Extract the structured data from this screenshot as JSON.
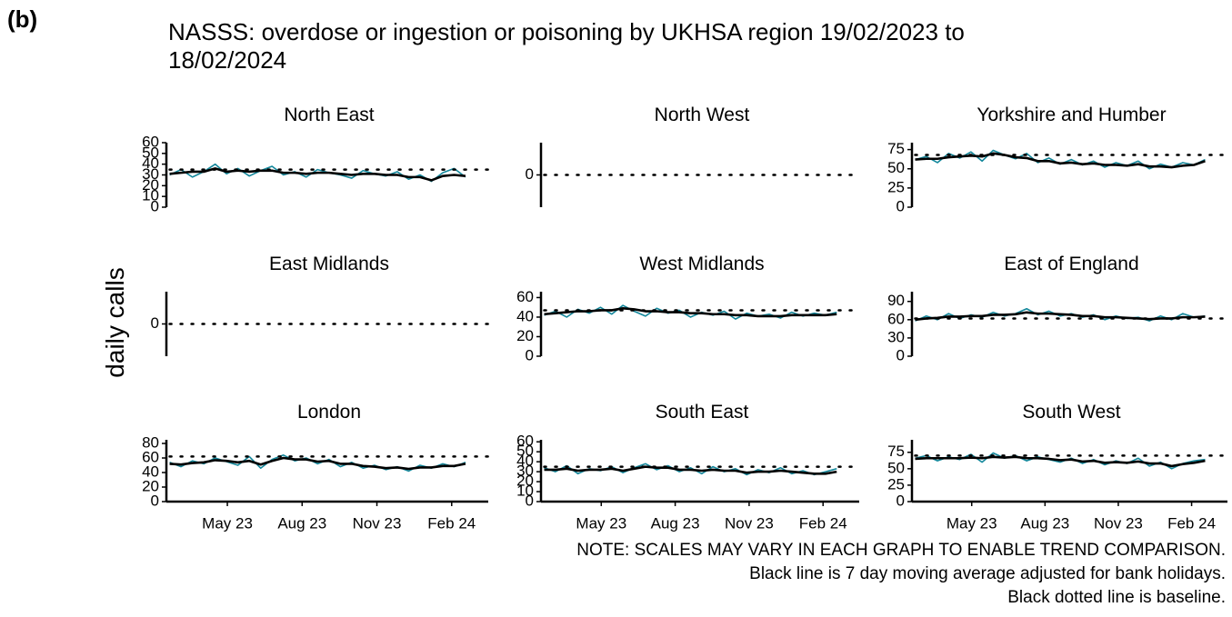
{
  "label": "(b)",
  "title": [
    "NASSS: overdose or ingestion or poisoning by UKHSA region 19/02/2023 to",
    "18/02/2024"
  ],
  "ylabel": "daily calls",
  "notes": [
    "NOTE: SCALES MAY VARY IN EACH GRAPH TO ENABLE TREND COMPARISON.",
    "Black line is 7 day moving average adjusted for bank holidays.",
    "Black dotted line is baseline."
  ],
  "chart_data": [
    {
      "type": "line",
      "title": "North East",
      "x": [
        0,
        14,
        28,
        42,
        56,
        70,
        84,
        98,
        112,
        126,
        140,
        154,
        168,
        182,
        196,
        210,
        224,
        238,
        252,
        266,
        280,
        294,
        308,
        322,
        336,
        350,
        364
      ],
      "xlim": [
        -4,
        392
      ],
      "ylim": [
        0,
        60
      ],
      "yticks": [
        0,
        10,
        20,
        30,
        40,
        50,
        60
      ],
      "baseline": 35,
      "series": [
        {
          "color": "#13879b",
          "values": [
            30,
            35,
            28,
            33,
            40,
            31,
            36,
            29,
            34,
            38,
            30,
            33,
            28,
            35,
            32,
            30,
            27,
            34,
            31,
            29,
            33,
            26,
            30,
            24,
            32,
            36,
            28
          ]
        },
        {
          "color": "#000000",
          "values": [
            31,
            32,
            33,
            33,
            36,
            33,
            34,
            33,
            34,
            34,
            32,
            32,
            31,
            32,
            32,
            31,
            30,
            31,
            31,
            30,
            30,
            28,
            28,
            25,
            29,
            30,
            29
          ]
        }
      ]
    },
    {
      "type": "line",
      "title": "North West",
      "xlim": [
        -4,
        392
      ],
      "ylim": [
        -1,
        1
      ],
      "yticks": [
        0
      ],
      "baseline": 0,
      "series": []
    },
    {
      "type": "line",
      "title": "Yorkshire and Humber",
      "x": [
        0,
        14,
        28,
        42,
        56,
        70,
        84,
        98,
        112,
        126,
        140,
        154,
        168,
        182,
        196,
        210,
        224,
        238,
        252,
        266,
        280,
        294,
        308,
        322,
        336,
        350,
        364
      ],
      "xlim": [
        -4,
        392
      ],
      "ylim": [
        0,
        84
      ],
      "yticks": [
        0,
        25,
        50,
        75
      ],
      "baseline": 68,
      "series": [
        {
          "color": "#13879b",
          "values": [
            62,
            66,
            58,
            70,
            64,
            72,
            60,
            74,
            68,
            63,
            70,
            58,
            64,
            56,
            62,
            55,
            60,
            52,
            58,
            54,
            60,
            50,
            56,
            52,
            58,
            55,
            62
          ]
        },
        {
          "color": "#000000",
          "values": [
            62,
            63,
            63,
            65,
            66,
            67,
            66,
            70,
            68,
            65,
            64,
            60,
            60,
            57,
            58,
            56,
            57,
            55,
            55,
            54,
            56,
            53,
            53,
            52,
            54,
            55,
            60
          ]
        }
      ]
    },
    {
      "type": "line",
      "title": "East Midlands",
      "xlim": [
        -4,
        392
      ],
      "ylim": [
        -1,
        1
      ],
      "yticks": [
        0
      ],
      "baseline": 0,
      "series": []
    },
    {
      "type": "line",
      "title": "West Midlands",
      "x": [
        0,
        14,
        28,
        42,
        56,
        70,
        84,
        98,
        112,
        126,
        140,
        154,
        168,
        182,
        196,
        210,
        224,
        238,
        252,
        266,
        280,
        294,
        308,
        322,
        336,
        350,
        364
      ],
      "xlim": [
        -4,
        392
      ],
      "ylim": [
        0,
        66
      ],
      "yticks": [
        0,
        20,
        40,
        60
      ],
      "baseline": 47,
      "series": [
        {
          "color": "#13879b",
          "values": [
            42,
            46,
            40,
            48,
            44,
            50,
            43,
            52,
            46,
            41,
            49,
            44,
            47,
            40,
            45,
            42,
            46,
            38,
            44,
            41,
            43,
            39,
            45,
            41,
            44,
            42,
            45
          ]
        },
        {
          "color": "#000000",
          "values": [
            43,
            44,
            45,
            46,
            46,
            47,
            47,
            49,
            48,
            46,
            46,
            45,
            45,
            44,
            44,
            43,
            43,
            42,
            42,
            41,
            41,
            41,
            42,
            42,
            42,
            42,
            43
          ]
        }
      ]
    },
    {
      "type": "line",
      "title": "East of England",
      "x": [
        0,
        14,
        28,
        42,
        56,
        70,
        84,
        98,
        112,
        126,
        140,
        154,
        168,
        182,
        196,
        210,
        224,
        238,
        252,
        266,
        280,
        294,
        308,
        322,
        336,
        350,
        364
      ],
      "xlim": [
        -4,
        392
      ],
      "ylim": [
        0,
        106
      ],
      "yticks": [
        0,
        30,
        60,
        90
      ],
      "baseline": 62,
      "series": [
        {
          "color": "#13879b",
          "values": [
            58,
            66,
            60,
            70,
            62,
            68,
            64,
            72,
            66,
            70,
            78,
            68,
            74,
            66,
            70,
            64,
            68,
            60,
            66,
            62,
            64,
            58,
            66,
            60,
            70,
            64,
            66
          ]
        },
        {
          "color": "#000000",
          "values": [
            60,
            62,
            63,
            65,
            65,
            66,
            66,
            68,
            68,
            69,
            72,
            70,
            70,
            69,
            68,
            66,
            66,
            64,
            64,
            63,
            62,
            61,
            62,
            62,
            64,
            64,
            65
          ]
        }
      ]
    },
    {
      "type": "line",
      "title": "London",
      "x": [
        0,
        14,
        28,
        42,
        56,
        70,
        84,
        98,
        112,
        126,
        140,
        154,
        168,
        182,
        196,
        210,
        224,
        238,
        252,
        266,
        280,
        294,
        308,
        322,
        336,
        350,
        364
      ],
      "xlim": [
        -4,
        392
      ],
      "ylim": [
        0,
        85
      ],
      "yticks": [
        0,
        20,
        40,
        60,
        80
      ],
      "baseline": 62,
      "xticks": [
        {
          "value": 71,
          "label": "May 23"
        },
        {
          "value": 163,
          "label": "Aug 23"
        },
        {
          "value": 255,
          "label": "Nov 23"
        },
        {
          "value": 347,
          "label": "Feb 24"
        }
      ],
      "series": [
        {
          "color": "#13879b",
          "values": [
            54,
            48,
            56,
            52,
            60,
            55,
            50,
            62,
            46,
            58,
            64,
            56,
            60,
            52,
            58,
            48,
            54,
            46,
            50,
            44,
            48,
            42,
            50,
            46,
            52,
            48,
            54
          ]
        },
        {
          "color": "#000000",
          "values": [
            52,
            51,
            53,
            54,
            57,
            56,
            54,
            56,
            51,
            56,
            60,
            58,
            58,
            55,
            56,
            52,
            52,
            49,
            48,
            46,
            47,
            45,
            47,
            47,
            49,
            49,
            52
          ]
        }
      ]
    },
    {
      "type": "line",
      "title": "South East",
      "x": [
        0,
        14,
        28,
        42,
        56,
        70,
        84,
        98,
        112,
        126,
        140,
        154,
        168,
        182,
        196,
        210,
        224,
        238,
        252,
        266,
        280,
        294,
        308,
        322,
        336,
        350,
        364
      ],
      "xlim": [
        -4,
        392
      ],
      "ylim": [
        0,
        62
      ],
      "yticks": [
        0,
        10,
        20,
        30,
        40,
        50,
        60
      ],
      "baseline": 35,
      "xticks": [
        {
          "value": 71,
          "label": "May 23"
        },
        {
          "value": 163,
          "label": "Aug 23"
        },
        {
          "value": 255,
          "label": "Nov 23"
        },
        {
          "value": 347,
          "label": "Feb 24"
        }
      ],
      "series": [
        {
          "color": "#13879b",
          "values": [
            34,
            30,
            36,
            28,
            33,
            31,
            35,
            29,
            34,
            38,
            32,
            36,
            30,
            34,
            28,
            35,
            30,
            33,
            27,
            32,
            29,
            34,
            28,
            31,
            27,
            30,
            33
          ]
        },
        {
          "color": "#000000",
          "values": [
            32,
            32,
            33,
            31,
            32,
            32,
            33,
            31,
            33,
            35,
            34,
            34,
            32,
            32,
            31,
            32,
            31,
            31,
            29,
            30,
            30,
            31,
            30,
            29,
            28,
            28,
            30
          ]
        }
      ]
    },
    {
      "type": "line",
      "title": "South West",
      "x": [
        0,
        14,
        28,
        42,
        56,
        70,
        84,
        98,
        112,
        126,
        140,
        154,
        168,
        182,
        196,
        210,
        224,
        238,
        252,
        266,
        280,
        294,
        308,
        322,
        336,
        350,
        364
      ],
      "xlim": [
        -4,
        392
      ],
      "ylim": [
        0,
        94
      ],
      "yticks": [
        0,
        25,
        50,
        75
      ],
      "baseline": 70,
      "xticks": [
        {
          "value": 71,
          "label": "May 23"
        },
        {
          "value": 163,
          "label": "Aug 23"
        },
        {
          "value": 255,
          "label": "Nov 23"
        },
        {
          "value": 347,
          "label": "Feb 24"
        }
      ],
      "series": [
        {
          "color": "#13879b",
          "values": [
            66,
            70,
            62,
            68,
            64,
            72,
            60,
            74,
            66,
            70,
            62,
            68,
            64,
            60,
            66,
            58,
            64,
            56,
            62,
            58,
            66,
            54,
            60,
            50,
            58,
            62,
            64
          ]
        },
        {
          "color": "#000000",
          "values": [
            65,
            66,
            66,
            66,
            66,
            67,
            66,
            68,
            67,
            68,
            66,
            66,
            65,
            63,
            64,
            61,
            62,
            59,
            60,
            59,
            61,
            58,
            58,
            54,
            57,
            59,
            62
          ]
        }
      ]
    }
  ]
}
